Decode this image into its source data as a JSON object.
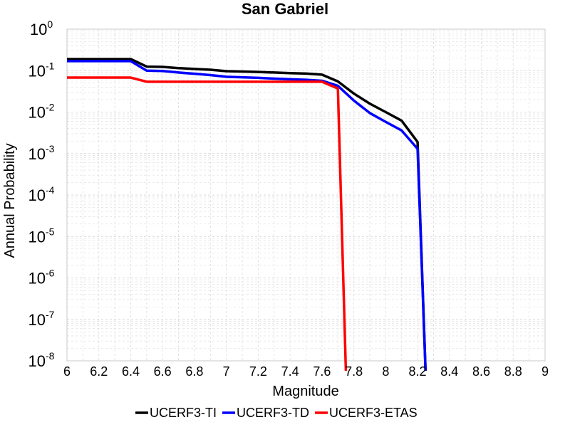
{
  "chart_data": {
    "type": "line",
    "title": "San Gabriel",
    "xlabel": "Magnitude",
    "ylabel": "Annual Probability",
    "xlim": [
      6,
      9
    ],
    "ylim": [
      1e-08,
      1
    ],
    "yscale": "log",
    "grid": true,
    "legend_position": "bottom",
    "x_ticks": [
      "6",
      "6.2",
      "6.4",
      "6.6",
      "6.8",
      "7",
      "7.2",
      "7.4",
      "7.6",
      "7.8",
      "8",
      "8.2",
      "8.4",
      "8.6",
      "8.8",
      "9"
    ],
    "y_ticks": [
      {
        "base": "10",
        "exp": "0"
      },
      {
        "base": "10",
        "exp": "-1"
      },
      {
        "base": "10",
        "exp": "-2"
      },
      {
        "base": "10",
        "exp": "-3"
      },
      {
        "base": "10",
        "exp": "-4"
      },
      {
        "base": "10",
        "exp": "-5"
      },
      {
        "base": "10",
        "exp": "-6"
      },
      {
        "base": "10",
        "exp": "-7"
      },
      {
        "base": "10",
        "exp": "-8"
      }
    ],
    "series": [
      {
        "name": "UCERF3-TI",
        "color": "#000000",
        "x": [
          6.0,
          6.1,
          6.2,
          6.3,
          6.4,
          6.5,
          6.6,
          6.7,
          6.8,
          6.9,
          7.0,
          7.1,
          7.2,
          7.3,
          7.4,
          7.5,
          7.6,
          7.7,
          7.8,
          7.9,
          8.0,
          8.1,
          8.2,
          8.25
        ],
        "y": [
          0.19,
          0.19,
          0.19,
          0.19,
          0.19,
          0.125,
          0.123,
          0.115,
          0.11,
          0.105,
          0.097,
          0.095,
          0.093,
          0.09,
          0.087,
          0.085,
          0.08,
          0.055,
          0.028,
          0.016,
          0.01,
          0.0062,
          0.0019,
          1e-09
        ]
      },
      {
        "name": "UCERF3-TD",
        "color": "#0000ff",
        "x": [
          6.0,
          6.1,
          6.2,
          6.3,
          6.4,
          6.5,
          6.6,
          6.7,
          6.8,
          6.9,
          7.0,
          7.1,
          7.2,
          7.3,
          7.4,
          7.5,
          7.6,
          7.7,
          7.8,
          7.9,
          8.0,
          8.1,
          8.2,
          8.25
        ],
        "y": [
          0.17,
          0.17,
          0.17,
          0.17,
          0.17,
          0.1,
          0.098,
          0.09,
          0.084,
          0.078,
          0.071,
          0.069,
          0.067,
          0.064,
          0.062,
          0.06,
          0.057,
          0.043,
          0.019,
          0.0095,
          0.0058,
          0.0036,
          0.0013,
          1e-09
        ]
      },
      {
        "name": "UCERF3-ETAS",
        "color": "#ff0000",
        "x": [
          6.0,
          6.1,
          6.2,
          6.3,
          6.4,
          6.5,
          6.6,
          6.7,
          6.8,
          6.9,
          7.0,
          7.1,
          7.2,
          7.3,
          7.4,
          7.5,
          7.6,
          7.7,
          7.75
        ],
        "y": [
          0.068,
          0.068,
          0.068,
          0.068,
          0.068,
          0.054,
          0.054,
          0.054,
          0.054,
          0.054,
          0.054,
          0.054,
          0.054,
          0.054,
          0.054,
          0.054,
          0.054,
          0.037,
          1e-09
        ]
      }
    ]
  }
}
